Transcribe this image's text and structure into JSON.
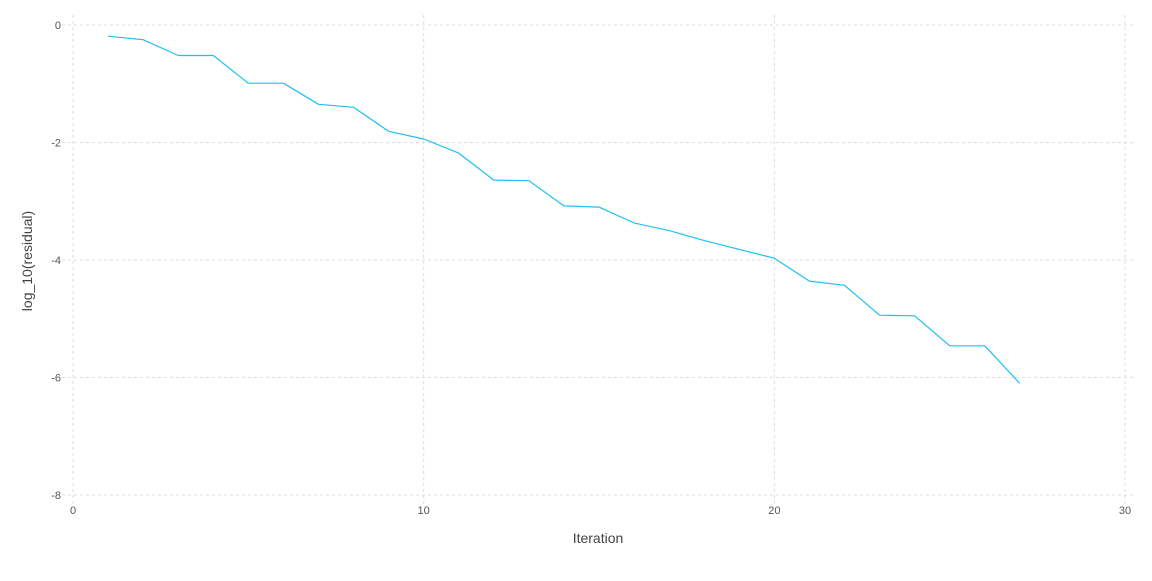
{
  "chart_data": {
    "type": "line",
    "title": "",
    "xlabel": "Iteration",
    "ylabel": "log_10(residual)",
    "xlim": [
      0,
      30
    ],
    "ylim": [
      -8,
      0
    ],
    "x_ticks": [
      0,
      10,
      20,
      30
    ],
    "y_ticks": [
      0,
      -2,
      -4,
      -6,
      -8
    ],
    "grid": true,
    "line_color": "#1ec0ef",
    "series": [
      {
        "x": [
          1,
          2,
          3,
          4,
          5,
          6,
          7,
          8,
          9,
          10,
          11,
          12,
          13,
          14,
          15,
          16,
          17,
          18,
          19,
          20,
          21,
          22,
          23,
          24,
          25,
          26,
          27
        ],
        "values": [
          -0.19,
          -0.25,
          -0.52,
          -0.52,
          -0.99,
          -0.99,
          -1.35,
          -1.4,
          -1.81,
          -1.94,
          -2.18,
          -2.64,
          -2.65,
          -3.08,
          -3.1,
          -3.37,
          -3.5,
          -3.67,
          -3.82,
          -3.97,
          -4.36,
          -4.43,
          -4.94,
          -4.95,
          -5.46,
          -5.46,
          -6.1
        ]
      }
    ]
  }
}
